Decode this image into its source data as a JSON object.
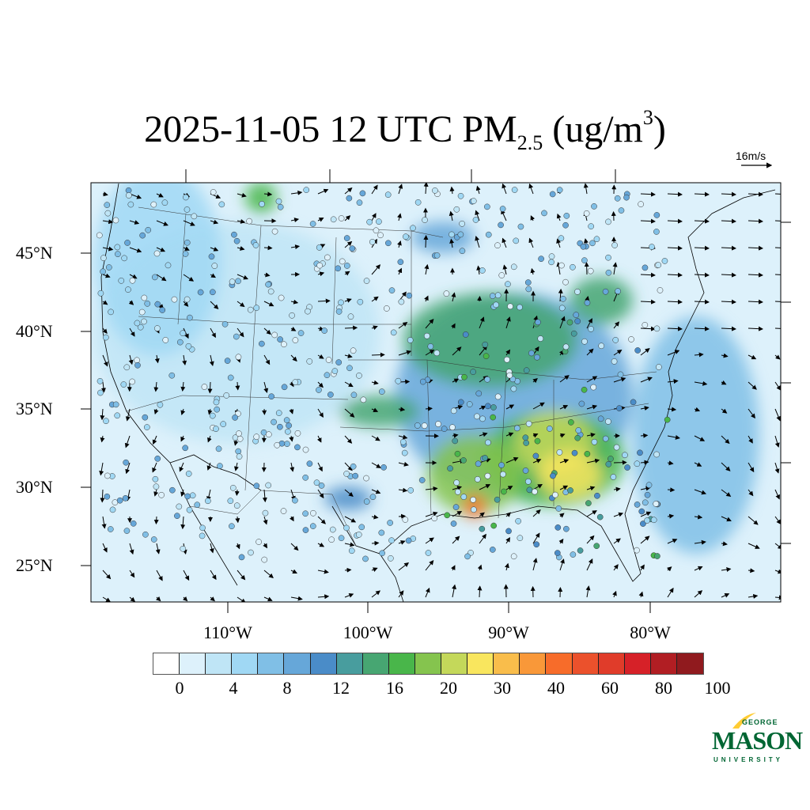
{
  "title": {
    "main": "2025-11-05 12 UTC PM",
    "sub": "2.5",
    "units_pre": " (ug/m",
    "units_sup": "3",
    "units_post": ")"
  },
  "wind_reference": {
    "label": "16m/s",
    "speed_mps": 16
  },
  "map": {
    "projection": "lambert-conformal",
    "lat_labels": [
      "45°N",
      "40°N",
      "35°N",
      "30°N",
      "25°N"
    ],
    "lon_labels": [
      "110°W",
      "100°W",
      "90°W",
      "80°W"
    ],
    "background_color": "#ddf1fb"
  },
  "colorbar": {
    "colors": [
      "#ffffff",
      "#ddf1fb",
      "#bfe5f6",
      "#a0d8f4",
      "#80bfe6",
      "#66a7d9",
      "#4a8cc8",
      "#489d9e",
      "#47a672",
      "#49b64a",
      "#85c44e",
      "#c4d85a",
      "#f9e65e",
      "#f9bd4b",
      "#f99839",
      "#f76c2a",
      "#eb512c",
      "#e03c2a",
      "#d62128",
      "#b11e23",
      "#901a1e"
    ],
    "labels": [
      "0",
      "4",
      "8",
      "12",
      "16",
      "20",
      "30",
      "40",
      "60",
      "80",
      "100"
    ]
  },
  "logo": {
    "line1": "GEORGE",
    "line2": "MASON",
    "line3": "UNIVERSITY",
    "green": "#006633",
    "gold": "#ffcc33"
  }
}
